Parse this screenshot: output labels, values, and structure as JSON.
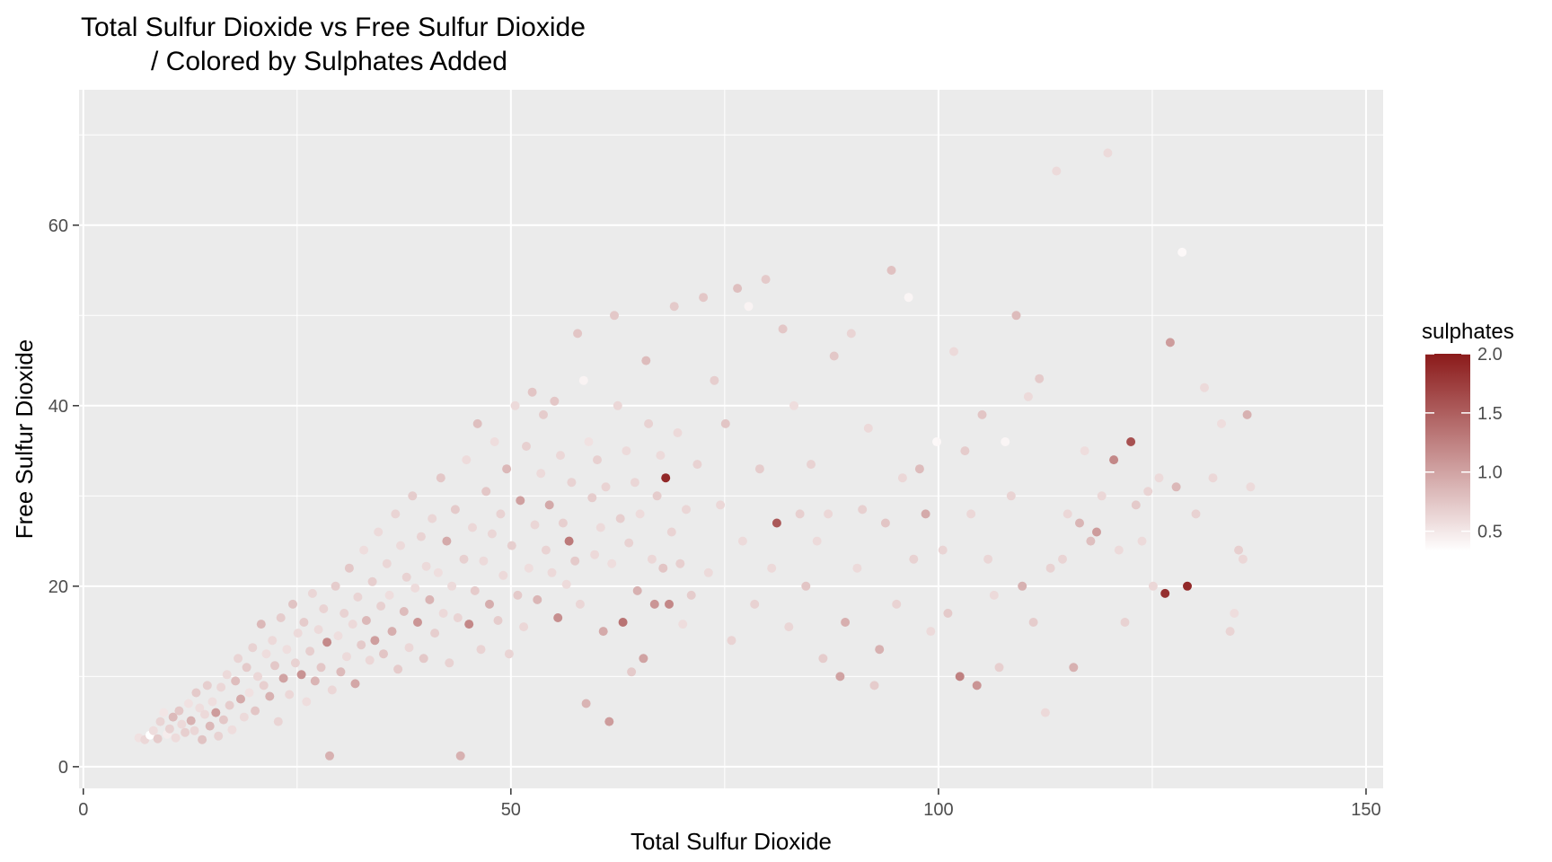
{
  "chart_data": {
    "type": "scatter",
    "title": "Total Sulfur Dioxide vs Free Sulfur Dioxide",
    "subtitle": "/ Colored by Sulphates Added",
    "xlabel": "Total Sulfur Dioxide",
    "ylabel": "Free Sulfur Dioxide",
    "xlim": [
      -0.5,
      152
    ],
    "ylim": [
      -2.4,
      75
    ],
    "x_ticks": [
      0,
      50,
      100,
      150
    ],
    "x_tick_labels": [
      "0",
      "50",
      "100",
      "150"
    ],
    "y_ticks": [
      0,
      20,
      40,
      60
    ],
    "y_tick_labels": [
      "0",
      "20",
      "40",
      "60"
    ],
    "grid": true,
    "legend": {
      "title": "sulphates",
      "position": "right",
      "range": [
        0.33,
        2.0
      ],
      "ticks": [
        0.5,
        1.0,
        1.5,
        2.0
      ],
      "tick_labels": [
        "0.5",
        "1.0",
        "1.5",
        "2.0"
      ],
      "color_low": "#ffffff",
      "color_high": "#8b1a1a"
    },
    "panel_background": "#ebebeb",
    "points": [
      [
        6.5,
        3.2,
        0.55
      ],
      [
        7.2,
        3.0,
        0.62
      ],
      [
        7.8,
        3.5,
        0.33
      ],
      [
        8.2,
        4.0,
        0.58
      ],
      [
        8.7,
        3.1,
        0.71
      ],
      [
        9.0,
        5.0,
        0.64
      ],
      [
        9.4,
        6.0,
        0.52
      ],
      [
        9.8,
        3.6,
        0.47
      ],
      [
        10.1,
        4.2,
        0.66
      ],
      [
        10.5,
        5.5,
        0.83
      ],
      [
        10.8,
        3.2,
        0.59
      ],
      [
        11.2,
        6.2,
        0.74
      ],
      [
        11.5,
        4.7,
        0.61
      ],
      [
        11.9,
        3.8,
        0.68
      ],
      [
        12.3,
        7.0,
        0.55
      ],
      [
        12.6,
        5.1,
        0.9
      ],
      [
        13.0,
        4.0,
        0.63
      ],
      [
        13.2,
        8.2,
        0.72
      ],
      [
        13.6,
        6.5,
        0.58
      ],
      [
        13.9,
        3.0,
        0.77
      ],
      [
        14.2,
        5.8,
        0.61
      ],
      [
        14.5,
        9.0,
        0.69
      ],
      [
        14.8,
        4.5,
        0.85
      ],
      [
        15.1,
        7.2,
        0.57
      ],
      [
        15.5,
        6.0,
        1.05
      ],
      [
        15.8,
        3.4,
        0.66
      ],
      [
        16.1,
        8.8,
        0.62
      ],
      [
        16.4,
        5.2,
        0.74
      ],
      [
        16.8,
        10.2,
        0.6
      ],
      [
        17.1,
        6.8,
        0.7
      ],
      [
        17.4,
        4.1,
        0.58
      ],
      [
        17.8,
        9.5,
        0.81
      ],
      [
        18.1,
        12.0,
        0.64
      ],
      [
        18.4,
        7.5,
        0.95
      ],
      [
        18.8,
        5.5,
        0.6
      ],
      [
        19.1,
        11.0,
        0.72
      ],
      [
        19.4,
        8.2,
        0.55
      ],
      [
        19.8,
        13.2,
        0.66
      ],
      [
        20.1,
        6.2,
        0.75
      ],
      [
        20.4,
        10.0,
        0.62
      ],
      [
        20.8,
        15.8,
        0.85
      ],
      [
        21.1,
        9.0,
        0.68
      ],
      [
        21.4,
        12.5,
        0.58
      ],
      [
        21.8,
        7.8,
        0.9
      ],
      [
        22.1,
        14.0,
        0.61
      ],
      [
        22.4,
        11.2,
        0.73
      ],
      [
        22.8,
        5.0,
        0.64
      ],
      [
        23.1,
        16.5,
        0.7
      ],
      [
        23.4,
        9.8,
        1.0
      ],
      [
        23.8,
        13.0,
        0.57
      ],
      [
        24.1,
        8.0,
        0.62
      ],
      [
        24.5,
        18.0,
        0.77
      ],
      [
        24.8,
        11.5,
        0.66
      ],
      [
        25.1,
        14.8,
        0.6
      ],
      [
        25.5,
        10.2,
        1.12
      ],
      [
        25.8,
        16.0,
        0.71
      ],
      [
        26.1,
        7.2,
        0.58
      ],
      [
        26.5,
        12.8,
        0.69
      ],
      [
        26.8,
        19.2,
        0.63
      ],
      [
        27.1,
        9.5,
        0.88
      ],
      [
        27.5,
        15.2,
        0.6
      ],
      [
        27.8,
        11.0,
        0.74
      ],
      [
        28.1,
        17.5,
        0.65
      ],
      [
        28.5,
        13.8,
        1.18
      ],
      [
        28.8,
        1.2,
        0.9
      ],
      [
        29.1,
        8.5,
        0.62
      ],
      [
        29.5,
        20.0,
        0.7
      ],
      [
        29.8,
        14.5,
        0.57
      ],
      [
        30.1,
        10.5,
        0.83
      ],
      [
        30.5,
        17.0,
        0.66
      ],
      [
        30.8,
        12.2,
        0.6
      ],
      [
        31.1,
        22.0,
        0.74
      ],
      [
        31.5,
        15.8,
        0.61
      ],
      [
        31.8,
        9.2,
        0.97
      ],
      [
        32.1,
        18.8,
        0.64
      ],
      [
        32.5,
        13.5,
        0.72
      ],
      [
        32.8,
        24.0,
        0.58
      ],
      [
        33.1,
        16.2,
        0.85
      ],
      [
        33.5,
        11.8,
        0.62
      ],
      [
        33.8,
        20.5,
        0.69
      ],
      [
        34.1,
        14.0,
        1.04
      ],
      [
        34.5,
        26.0,
        0.6
      ],
      [
        34.8,
        17.8,
        0.67
      ],
      [
        35.1,
        12.5,
        0.75
      ],
      [
        35.5,
        22.5,
        0.63
      ],
      [
        35.8,
        19.0,
        0.58
      ],
      [
        36.1,
        15.0,
        0.92
      ],
      [
        36.5,
        28.0,
        0.64
      ],
      [
        36.8,
        10.8,
        0.71
      ],
      [
        37.1,
        24.5,
        0.6
      ],
      [
        37.5,
        17.2,
        0.82
      ],
      [
        37.8,
        21.0,
        0.66
      ],
      [
        38.1,
        13.2,
        0.62
      ],
      [
        38.5,
        30.0,
        0.7
      ],
      [
        38.8,
        19.8,
        0.59
      ],
      [
        39.1,
        16.0,
        1.1
      ],
      [
        39.5,
        25.5,
        0.65
      ],
      [
        39.8,
        12.0,
        0.73
      ],
      [
        40.1,
        22.2,
        0.6
      ],
      [
        40.5,
        18.5,
        0.88
      ],
      [
        40.8,
        27.5,
        0.63
      ],
      [
        41.1,
        14.8,
        0.69
      ],
      [
        41.5,
        21.5,
        0.57
      ],
      [
        41.8,
        32.0,
        0.74
      ],
      [
        42.1,
        17.0,
        0.61
      ],
      [
        42.5,
        25.0,
        0.95
      ],
      [
        42.8,
        11.5,
        0.66
      ],
      [
        43.1,
        20.0,
        0.6
      ],
      [
        43.5,
        28.5,
        0.72
      ],
      [
        43.8,
        16.5,
        0.64
      ],
      [
        44.1,
        1.2,
        0.9
      ],
      [
        44.5,
        23.0,
        0.67
      ],
      [
        44.8,
        34.0,
        0.59
      ],
      [
        45.1,
        15.8,
        1.2
      ],
      [
        45.5,
        26.5,
        0.62
      ],
      [
        45.8,
        19.5,
        0.71
      ],
      [
        46.1,
        38.0,
        0.8
      ],
      [
        46.5,
        13.0,
        0.65
      ],
      [
        46.8,
        22.8,
        0.6
      ],
      [
        47.1,
        30.5,
        0.74
      ],
      [
        47.5,
        18.0,
        0.93
      ],
      [
        47.8,
        25.8,
        0.63
      ],
      [
        48.1,
        36.0,
        0.58
      ],
      [
        48.5,
        16.2,
        0.7
      ],
      [
        48.8,
        28.0,
        0.66
      ],
      [
        49.1,
        21.2,
        0.61
      ],
      [
        49.5,
        33.0,
        0.85
      ],
      [
        49.8,
        12.5,
        0.64
      ],
      [
        50.1,
        24.5,
        0.69
      ],
      [
        50.5,
        40.0,
        0.6
      ],
      [
        50.8,
        19.0,
        0.72
      ],
      [
        51.1,
        29.5,
        1.02
      ],
      [
        51.5,
        15.5,
        0.62
      ],
      [
        51.8,
        35.5,
        0.67
      ],
      [
        52.1,
        22.0,
        0.58
      ],
      [
        52.5,
        41.5,
        0.75
      ],
      [
        52.8,
        26.8,
        0.63
      ],
      [
        53.1,
        18.5,
        0.86
      ],
      [
        53.5,
        32.5,
        0.6
      ],
      [
        53.8,
        39.0,
        0.7
      ],
      [
        54.1,
        24.0,
        0.65
      ],
      [
        54.5,
        29.0,
        0.96
      ],
      [
        54.8,
        21.5,
        0.61
      ],
      [
        55.1,
        40.5,
        0.74
      ],
      [
        55.5,
        16.5,
        1.15
      ],
      [
        55.8,
        34.5,
        0.62
      ],
      [
        56.1,
        27.0,
        0.68
      ],
      [
        56.5,
        20.2,
        0.59
      ],
      [
        56.8,
        25.0,
        1.3
      ],
      [
        57.1,
        31.5,
        0.66
      ],
      [
        57.5,
        22.8,
        0.72
      ],
      [
        57.8,
        48.0,
        0.75
      ],
      [
        58.1,
        18.0,
        0.63
      ],
      [
        58.5,
        42.8,
        0.42
      ],
      [
        58.8,
        7.0,
        0.88
      ],
      [
        59.1,
        36.0,
        0.55
      ],
      [
        59.5,
        29.8,
        0.7
      ],
      [
        59.8,
        23.5,
        0.61
      ],
      [
        60.1,
        34.0,
        0.67
      ],
      [
        60.5,
        26.5,
        0.6
      ],
      [
        60.8,
        15.0,
        0.95
      ],
      [
        61.1,
        31.0,
        0.65
      ],
      [
        61.5,
        5.0,
        1.05
      ],
      [
        61.8,
        22.5,
        0.58
      ],
      [
        62.1,
        50.0,
        0.73
      ],
      [
        62.5,
        40.0,
        0.62
      ],
      [
        62.8,
        27.5,
        0.69
      ],
      [
        63.1,
        16.0,
        1.35
      ],
      [
        63.5,
        35.0,
        0.6
      ],
      [
        63.8,
        24.8,
        0.66
      ],
      [
        64.1,
        10.5,
        0.72
      ],
      [
        64.5,
        31.5,
        0.63
      ],
      [
        64.8,
        19.5,
        0.9
      ],
      [
        65.1,
        28.0,
        0.59
      ],
      [
        65.5,
        12.0,
        1.0
      ],
      [
        65.8,
        45.0,
        0.82
      ],
      [
        66.1,
        38.0,
        0.66
      ],
      [
        66.5,
        23.0,
        0.62
      ],
      [
        66.8,
        18.0,
        1.1
      ],
      [
        67.1,
        30.0,
        0.7
      ],
      [
        67.5,
        34.5,
        0.6
      ],
      [
        67.8,
        22.0,
        0.75
      ],
      [
        68.1,
        32.0,
        1.9
      ],
      [
        68.5,
        18.0,
        1.2
      ],
      [
        68.8,
        26.0,
        0.65
      ],
      [
        69.1,
        51.0,
        0.72
      ],
      [
        69.5,
        37.0,
        0.61
      ],
      [
        69.8,
        22.5,
        0.68
      ],
      [
        70.1,
        15.8,
        0.58
      ],
      [
        70.5,
        28.5,
        0.63
      ],
      [
        71.1,
        19.0,
        0.7
      ],
      [
        71.8,
        33.5,
        0.66
      ],
      [
        72.5,
        52.0,
        0.74
      ],
      [
        73.1,
        21.5,
        0.6
      ],
      [
        73.8,
        42.8,
        0.69
      ],
      [
        74.5,
        29.0,
        0.62
      ],
      [
        75.1,
        38.0,
        0.75
      ],
      [
        75.8,
        14.0,
        0.65
      ],
      [
        76.5,
        53.0,
        0.8
      ],
      [
        77.1,
        25.0,
        0.6
      ],
      [
        77.8,
        51.0,
        0.42
      ],
      [
        78.5,
        18.0,
        0.66
      ],
      [
        79.1,
        33.0,
        0.7
      ],
      [
        79.8,
        54.0,
        0.72
      ],
      [
        80.5,
        22.0,
        0.61
      ],
      [
        81.1,
        27.0,
        1.55
      ],
      [
        81.8,
        48.5,
        0.74
      ],
      [
        82.5,
        15.5,
        0.63
      ],
      [
        83.1,
        40.0,
        0.58
      ],
      [
        83.8,
        28.0,
        0.68
      ],
      [
        84.5,
        20.0,
        0.75
      ],
      [
        85.1,
        33.5,
        0.66
      ],
      [
        85.8,
        25.0,
        0.6
      ],
      [
        86.5,
        12.0,
        0.7
      ],
      [
        87.1,
        28.0,
        0.62
      ],
      [
        87.8,
        45.5,
        0.73
      ],
      [
        88.5,
        10.0,
        1.0
      ],
      [
        89.1,
        16.0,
        0.91
      ],
      [
        89.8,
        48.0,
        0.64
      ],
      [
        90.5,
        22.0,
        0.6
      ],
      [
        91.1,
        28.5,
        0.67
      ],
      [
        91.8,
        37.5,
        0.61
      ],
      [
        92.5,
        9.0,
        0.7
      ],
      [
        93.1,
        13.0,
        0.9
      ],
      [
        93.8,
        27.0,
        0.75
      ],
      [
        94.5,
        55.0,
        0.78
      ],
      [
        95.1,
        18.0,
        0.65
      ],
      [
        95.8,
        32.0,
        0.62
      ],
      [
        96.5,
        52.0,
        0.4
      ],
      [
        97.1,
        23.0,
        0.66
      ],
      [
        97.8,
        33.0,
        0.82
      ],
      [
        98.5,
        28.0,
        0.95
      ],
      [
        99.1,
        15.0,
        0.6
      ],
      [
        99.8,
        36.0,
        0.38
      ],
      [
        100.5,
        24.0,
        0.64
      ],
      [
        101.1,
        17.0,
        0.72
      ],
      [
        101.8,
        46.0,
        0.6
      ],
      [
        102.5,
        10.0,
        1.25
      ],
      [
        103.1,
        35.0,
        0.7
      ],
      [
        103.8,
        28.0,
        0.62
      ],
      [
        104.5,
        9.0,
        1.1
      ],
      [
        105.1,
        39.0,
        0.75
      ],
      [
        105.8,
        23.0,
        0.63
      ],
      [
        106.5,
        19.0,
        0.6
      ],
      [
        107.1,
        11.0,
        0.68
      ],
      [
        107.8,
        36.0,
        0.4
      ],
      [
        108.5,
        30.0,
        0.65
      ],
      [
        109.1,
        50.0,
        0.82
      ],
      [
        109.8,
        20.0,
        0.9
      ],
      [
        110.5,
        41.0,
        0.6
      ],
      [
        111.1,
        16.0,
        0.7
      ],
      [
        111.8,
        43.0,
        0.72
      ],
      [
        112.5,
        6.0,
        0.61
      ],
      [
        113.1,
        22.0,
        0.66
      ],
      [
        113.8,
        66.0,
        0.6
      ],
      [
        114.5,
        23.0,
        0.64
      ],
      [
        115.1,
        28.0,
        0.62
      ],
      [
        115.8,
        11.0,
        0.9
      ],
      [
        116.5,
        27.0,
        0.87
      ],
      [
        117.1,
        35.0,
        0.58
      ],
      [
        117.8,
        25.0,
        0.8
      ],
      [
        118.5,
        26.0,
        1.05
      ],
      [
        119.1,
        30.0,
        0.62
      ],
      [
        119.8,
        68.0,
        0.6
      ],
      [
        120.5,
        34.0,
        1.2
      ],
      [
        121.1,
        24.0,
        0.6
      ],
      [
        121.8,
        16.0,
        0.66
      ],
      [
        122.5,
        36.0,
        1.6
      ],
      [
        123.1,
        29.0,
        0.72
      ],
      [
        123.8,
        25.0,
        0.6
      ],
      [
        124.5,
        30.5,
        0.64
      ],
      [
        125.1,
        20.0,
        0.62
      ],
      [
        125.8,
        32.0,
        0.6
      ],
      [
        126.5,
        19.2,
        1.85
      ],
      [
        127.1,
        47.0,
        1.05
      ],
      [
        127.8,
        31.0,
        0.85
      ],
      [
        128.5,
        57.0,
        0.38
      ],
      [
        129.1,
        20.0,
        1.9
      ],
      [
        130.1,
        28.0,
        0.66
      ],
      [
        131.1,
        42.0,
        0.6
      ],
      [
        132.1,
        32.0,
        0.62
      ],
      [
        133.1,
        38.0,
        0.58
      ],
      [
        134.1,
        15.0,
        0.64
      ],
      [
        135.1,
        24.0,
        0.68
      ],
      [
        136.1,
        39.0,
        0.9
      ],
      [
        136.5,
        31.0,
        0.6
      ],
      [
        135.6,
        23.0,
        0.62
      ],
      [
        134.6,
        17.0,
        0.58
      ]
    ]
  }
}
